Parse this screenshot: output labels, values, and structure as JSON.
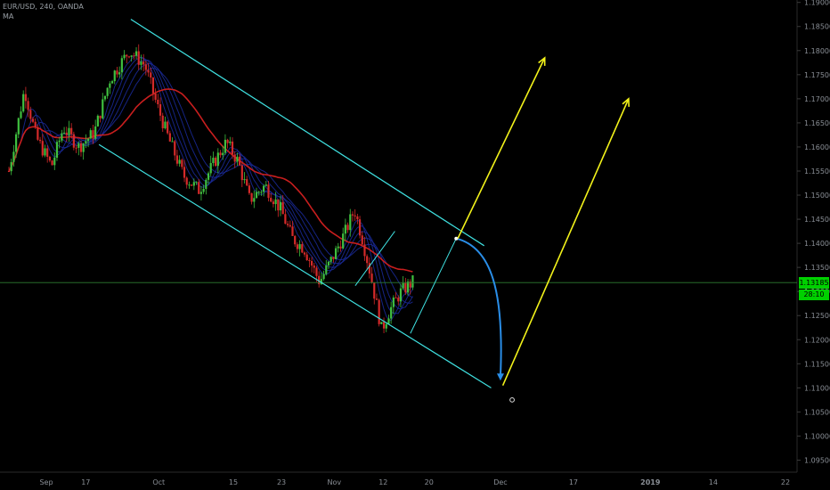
{
  "header": {
    "symbol_line": "EUR/USD, 240, OANDA",
    "indicator": "MA"
  },
  "price_tag": {
    "value": "1.13185",
    "timer": "28:10"
  },
  "colors": {
    "background": "#000000",
    "up_candle": "#3fbf3f",
    "down_candle": "#d42a2a",
    "channel": "#3fe0e0",
    "projection_arrow": "#f2f21a",
    "curve": "#2a8ee8",
    "ma_long": "#c81e1e",
    "ma_ribbon": "#1a2a9a",
    "current_price_line": "#2e7d32",
    "axis_text": "#8a8f96"
  },
  "chart_data": {
    "type": "candlestick",
    "timeframe": "240",
    "y_axis": {
      "ticks": [
        "1.19000",
        "1.18500",
        "1.18000",
        "1.17500",
        "1.17000",
        "1.16500",
        "1.16000",
        "1.15500",
        "1.15000",
        "1.14500",
        "1.14000",
        "1.13500",
        "1.13000",
        "1.12500",
        "1.12000",
        "1.11500",
        "1.11000",
        "1.10500",
        "1.10000",
        "1.09500"
      ],
      "ylim": [
        1.0925,
        1.1905
      ]
    },
    "x_axis": {
      "ticks": [
        "Sep",
        "17",
        "Oct",
        "15",
        "23",
        "Nov",
        "12",
        "20",
        "Dec",
        "17",
        "2019",
        "14",
        "22"
      ],
      "tick_pos": [
        0.0,
        0.099,
        0.193,
        0.289,
        0.351,
        0.419,
        0.482,
        0.541,
        0.633,
        0.727,
        0.826,
        0.907,
        1.0
      ]
    },
    "price_path": [
      [
        0.0,
        1.155
      ],
      [
        0.02,
        1.172
      ],
      [
        0.035,
        1.162
      ],
      [
        0.055,
        1.156
      ],
      [
        0.07,
        1.164
      ],
      [
        0.09,
        1.16
      ],
      [
        0.11,
        1.163
      ],
      [
        0.13,
        1.174
      ],
      [
        0.155,
        1.18
      ],
      [
        0.175,
        1.177
      ],
      [
        0.19,
        1.169
      ],
      [
        0.205,
        1.162
      ],
      [
        0.225,
        1.154
      ],
      [
        0.245,
        1.151
      ],
      [
        0.265,
        1.157
      ],
      [
        0.28,
        1.161
      ],
      [
        0.295,
        1.157
      ],
      [
        0.31,
        1.149
      ],
      [
        0.33,
        1.152
      ],
      [
        0.35,
        1.147
      ],
      [
        0.365,
        1.141
      ],
      [
        0.38,
        1.139
      ],
      [
        0.4,
        1.132
      ],
      [
        0.42,
        1.138
      ],
      [
        0.435,
        1.143
      ],
      [
        0.445,
        1.147
      ],
      [
        0.455,
        1.141
      ],
      [
        0.465,
        1.134
      ],
      [
        0.48,
        1.122
      ],
      [
        0.49,
        1.126
      ],
      [
        0.505,
        1.13
      ],
      [
        0.52,
        1.132
      ]
    ],
    "last_price": 1.13185,
    "channel": {
      "upper": {
        "from": [
          0.157,
          1.1865
        ],
        "to": [
          0.612,
          1.1395
        ]
      },
      "lower": {
        "from": [
          0.116,
          1.1605
        ],
        "to": [
          0.621,
          1.11
        ]
      }
    },
    "legs": [
      {
        "from": [
          0.446,
          1.1312
        ],
        "to": [
          0.497,
          1.1425
        ]
      },
      {
        "from": [
          0.517,
          1.1213
        ],
        "to": [
          0.576,
          1.141
        ]
      }
    ],
    "curve": {
      "from": [
        0.576,
        1.141
      ],
      "to": [
        0.633,
        1.1115
      ]
    },
    "arrows": [
      {
        "from": [
          0.578,
          1.141
        ],
        "to": [
          0.69,
          1.1785
        ]
      },
      {
        "from": [
          0.636,
          1.1105
        ],
        "to": [
          0.798,
          1.17
        ]
      }
    ],
    "marker": [
      0.648,
      1.1075
    ]
  }
}
